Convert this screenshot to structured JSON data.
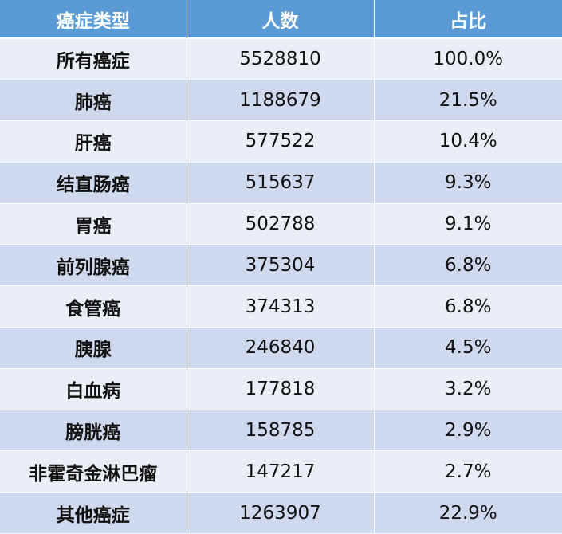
{
  "header": {
    "col_type": "癌症类型",
    "col_count": "人数",
    "col_share": "占比"
  },
  "rows": [
    {
      "type": "所有癌症",
      "count": "5528810",
      "share": "100.0%"
    },
    {
      "type": "肺癌",
      "count": "1188679",
      "share": "21.5%"
    },
    {
      "type": "肝癌",
      "count": "577522",
      "share": "10.4%"
    },
    {
      "type": "结直肠癌",
      "count": "515637",
      "share": "9.3%"
    },
    {
      "type": "胃癌",
      "count": "502788",
      "share": "9.1%"
    },
    {
      "type": "前列腺癌",
      "count": "375304",
      "share": "6.8%"
    },
    {
      "type": "食管癌",
      "count": "374313",
      "share": "6.8%"
    },
    {
      "type": "胰腺",
      "count": "246840",
      "share": "4.5%"
    },
    {
      "type": "白血病",
      "count": "177818",
      "share": "3.2%"
    },
    {
      "type": "膀胱癌",
      "count": "158785",
      "share": "2.9%"
    },
    {
      "type": "非霍奇金淋巴瘤",
      "count": "147217",
      "share": "2.7%"
    },
    {
      "type": "其他癌症",
      "count": "1263907",
      "share": "22.9%"
    }
  ]
}
